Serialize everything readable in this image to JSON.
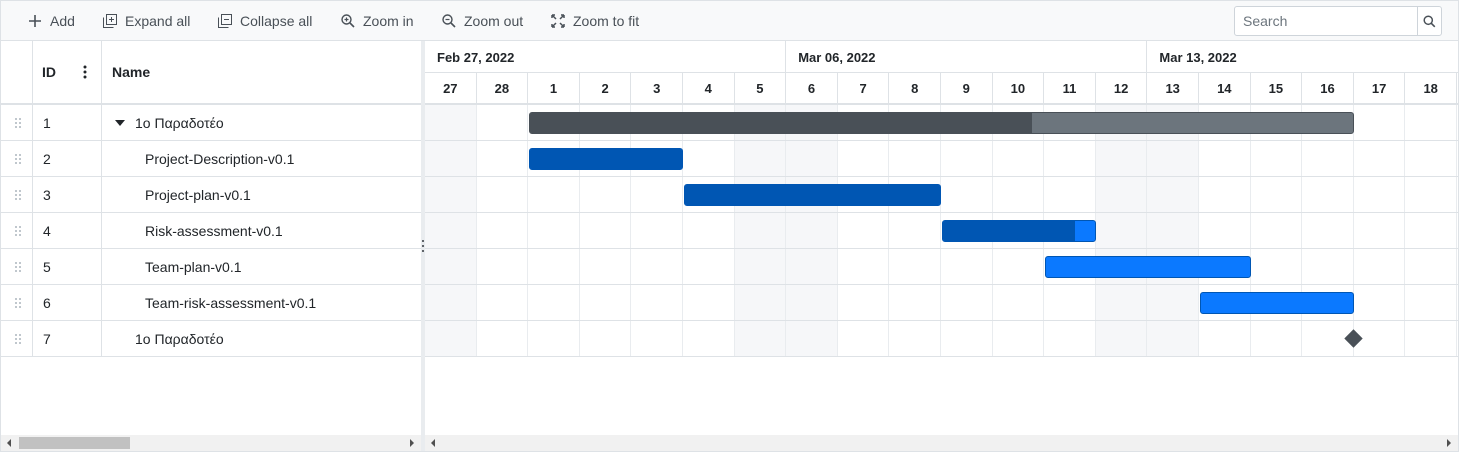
{
  "toolbar": {
    "add": "Add",
    "expand_all": "Expand all",
    "collapse_all": "Collapse all",
    "zoom_in": "Zoom in",
    "zoom_out": "Zoom out",
    "zoom_to_fit": "Zoom to fit",
    "search_placeholder": "Search"
  },
  "grid": {
    "col_id": "ID",
    "col_name": "Name",
    "rows": [
      {
        "id": "1",
        "name": "1ο Παραδοτέο"
      },
      {
        "id": "2",
        "name": "Project-Description-v0.1"
      },
      {
        "id": "3",
        "name": "Project-plan-v0.1"
      },
      {
        "id": "4",
        "name": "Risk-assessment-v0.1"
      },
      {
        "id": "5",
        "name": "Team-plan-v0.1"
      },
      {
        "id": "6",
        "name": "Team-risk-assessment-v0.1"
      },
      {
        "id": "7",
        "name": "1ο Παραδοτέο"
      }
    ]
  },
  "timeline": {
    "weeks": [
      "Feb 27, 2022",
      "Mar 06, 2022",
      "Mar 13, 2022"
    ],
    "days": [
      "27",
      "28",
      "1",
      "2",
      "3",
      "4",
      "5",
      "6",
      "7",
      "8",
      "9",
      "10",
      "11",
      "12",
      "13",
      "14",
      "15",
      "16",
      "17",
      "18"
    ]
  },
  "tasks": [
    {
      "row": 0,
      "type": "parent",
      "start_day": 2,
      "end_day": 18,
      "progress": 0.61
    },
    {
      "row": 1,
      "type": "task",
      "start_day": 2,
      "end_day": 5,
      "progress": 1.0
    },
    {
      "row": 2,
      "type": "task",
      "start_day": 5,
      "end_day": 10,
      "progress": 1.0
    },
    {
      "row": 3,
      "type": "task",
      "start_day": 10,
      "end_day": 13,
      "progress": 0.87
    },
    {
      "row": 4,
      "type": "task",
      "start_day": 12,
      "end_day": 16,
      "progress": 0
    },
    {
      "row": 5,
      "type": "task",
      "start_day": 15,
      "end_day": 18,
      "progress": 0
    },
    {
      "row": 6,
      "type": "milestone",
      "start_day": 18
    }
  ],
  "colors": {
    "parent_bg": "#6c757d",
    "parent_fill": "#495057",
    "task_bg": "#0b79ff",
    "task_fill": "#0056b3",
    "milestone": "#495057"
  }
}
